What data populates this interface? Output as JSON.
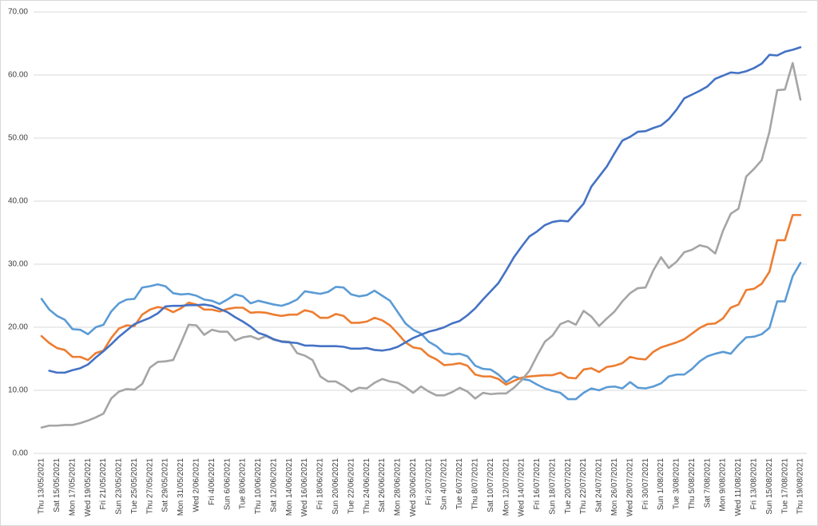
{
  "chart_data": {
    "type": "line",
    "categories": [
      "Thu 13/05/2021",
      null,
      "Sat 15/05/2021",
      null,
      "Mon 17/05/2021",
      null,
      "Wed 19/05/2021",
      null,
      "Fri 21/05/2021",
      null,
      "Sun 23/05/2021",
      null,
      "Tue 25/05/2021",
      null,
      "Thu 27/05/2021",
      null,
      "Sat 29/05/2021",
      null,
      "Mon 31/05/2021",
      null,
      "Wed 2/06/2021",
      null,
      "Fri 4/06/2021",
      null,
      "Sun 6/06/2021",
      null,
      "Tue 8/06/2021",
      null,
      "Thu 10/06/2021",
      null,
      "Sat 12/06/2021",
      null,
      "Mon 14/06/2021",
      null,
      "Wed 16/06/2021",
      null,
      "Fri 18/06/2021",
      null,
      "Sun 20/06/2021",
      null,
      "Tue 22/06/2021",
      null,
      "Thu 24/06/2021",
      null,
      "Sat 26/06/2021",
      null,
      "Mon 28/06/2021",
      null,
      "Wed 30/06/2021",
      null,
      "Fri 2/07/2021",
      null,
      "Sun 4/07/2021",
      null,
      "Tue 6/07/2021",
      null,
      "Thu 8/07/2021",
      null,
      "Sat 10/07/2021",
      null,
      "Mon 12/07/2021",
      null,
      "Wed 14/07/2021",
      null,
      "Fri 16/07/2021",
      null,
      "Sun 18/07/2021",
      null,
      "Tue 20/07/2021",
      null,
      "Thu 22/07/2021",
      null,
      "Sat 24/07/2021",
      null,
      "Mon 26/07/2021",
      null,
      "Wed 28/07/2021",
      null,
      "Fri 30/07/2021",
      null,
      "Sun 1/08/2021",
      null,
      "Tue 3/08/2021",
      null,
      "Thu 5/08/2021",
      null,
      "Sat 7/08/2021",
      null,
      "Mon 9/08/2021",
      null,
      "Wed 11/08/2021",
      null,
      "Fri 13/08/2021",
      null,
      "Sun 15/08/2021",
      null,
      "Tue 17/08/2021",
      null,
      "Thu 19/08/2021"
    ],
    "series": [
      {
        "color": "#5b9bd5",
        "values": [
          24.5,
          22.8,
          21.8,
          21.2,
          19.7,
          19.6,
          18.9,
          20.0,
          20.4,
          22.5,
          23.8,
          24.4,
          24.5,
          26.3,
          26.5,
          26.8,
          26.5,
          25.4,
          25.2,
          25.3,
          25.0,
          24.4,
          24.2,
          23.7,
          24.4,
          25.2,
          24.9,
          23.8,
          24.2,
          23.9,
          23.6,
          23.4,
          23.8,
          24.4,
          25.7,
          25.5,
          25.3,
          25.6,
          26.4,
          26.3,
          25.2,
          24.9,
          25.1,
          25.8,
          25.0,
          24.2,
          22.4,
          20.6,
          19.6,
          19.0,
          17.7,
          17.0,
          15.9,
          15.7,
          15.8,
          15.4,
          13.9,
          13.4,
          13.3,
          12.5,
          11.3,
          12.2,
          11.8,
          11.6,
          10.9,
          10.3,
          9.9,
          9.6,
          8.6,
          8.6,
          9.6,
          10.3,
          10.0,
          10.5,
          10.6,
          10.3,
          11.3,
          10.4,
          10.3,
          10.6,
          11.1,
          12.2,
          12.5,
          12.5,
          13.4,
          14.6,
          15.4,
          15.8,
          16.1,
          15.8,
          17.2,
          18.4,
          18.5,
          18.9,
          19.9,
          24.1,
          24.1,
          28.1,
          30.2
        ]
      },
      {
        "color": "#ed7d31",
        "values": [
          18.6,
          17.5,
          16.7,
          16.4,
          15.3,
          15.3,
          14.8,
          15.9,
          16.3,
          18.3,
          19.8,
          20.3,
          20.2,
          22.0,
          22.8,
          23.2,
          23.0,
          22.4,
          23.0,
          23.9,
          23.6,
          22.8,
          22.8,
          22.5,
          22.9,
          23.1,
          23.1,
          22.3,
          22.4,
          22.3,
          22.0,
          21.8,
          22.0,
          22.0,
          22.7,
          22.4,
          21.5,
          21.5,
          22.1,
          21.8,
          20.7,
          20.7,
          20.9,
          21.5,
          21.1,
          20.3,
          19.0,
          17.6,
          16.8,
          16.6,
          15.5,
          14.9,
          14.0,
          14.1,
          14.3,
          13.9,
          12.5,
          12.2,
          12.2,
          11.8,
          10.9,
          11.5,
          12.0,
          12.2,
          12.3,
          12.4,
          12.4,
          12.8,
          12.0,
          11.9,
          13.3,
          13.5,
          12.9,
          13.7,
          13.9,
          14.3,
          15.3,
          15.0,
          14.9,
          16.1,
          16.8,
          17.2,
          17.6,
          18.1,
          19.0,
          19.9,
          20.5,
          20.6,
          21.4,
          23.1,
          23.6,
          25.9,
          26.1,
          26.9,
          28.8,
          33.8,
          33.8,
          37.8,
          37.8
        ]
      },
      {
        "color": "#a5a5a5",
        "values": [
          4.1,
          4.4,
          4.4,
          4.5,
          4.5,
          4.8,
          5.2,
          5.7,
          6.3,
          8.7,
          9.8,
          10.2,
          10.1,
          11.0,
          13.6,
          14.5,
          14.6,
          14.8,
          17.5,
          20.4,
          20.3,
          18.8,
          19.6,
          19.3,
          19.3,
          17.9,
          18.4,
          18.6,
          18.1,
          18.6,
          18.0,
          17.8,
          17.7,
          15.9,
          15.5,
          14.8,
          12.2,
          11.4,
          11.4,
          10.7,
          9.8,
          10.4,
          10.3,
          11.2,
          11.8,
          11.4,
          11.2,
          10.5,
          9.6,
          10.6,
          9.8,
          9.2,
          9.2,
          9.7,
          10.4,
          9.8,
          8.7,
          9.6,
          9.4,
          9.5,
          9.5,
          10.4,
          11.6,
          13.1,
          15.5,
          17.7,
          18.7,
          20.5,
          21.0,
          20.4,
          22.6,
          21.7,
          20.2,
          21.4,
          22.5,
          24.1,
          25.4,
          26.2,
          26.3,
          29.0,
          31.1,
          29.4,
          30.4,
          31.9,
          32.3,
          33.0,
          32.7,
          31.7,
          35.3,
          38.0,
          38.8,
          43.9,
          45.1,
          46.5,
          51.0,
          57.6,
          57.7,
          61.9,
          56.1
        ]
      },
      {
        "color": "#4472c4",
        "values": [
          null,
          13.1,
          12.8,
          12.8,
          13.2,
          13.5,
          14.1,
          15.2,
          16.2,
          17.3,
          18.5,
          19.5,
          20.5,
          21.0,
          21.5,
          22.2,
          23.3,
          23.4,
          23.4,
          23.5,
          23.5,
          23.6,
          23.4,
          22.9,
          22.4,
          21.6,
          20.9,
          20.1,
          19.1,
          18.7,
          18.1,
          17.7,
          17.6,
          17.5,
          17.1,
          17.1,
          17.0,
          17.0,
          17.0,
          16.9,
          16.6,
          16.6,
          16.7,
          16.4,
          16.3,
          16.5,
          16.9,
          17.6,
          18.3,
          18.8,
          19.3,
          19.6,
          20.0,
          20.6,
          21.0,
          21.9,
          23.0,
          24.4,
          25.7,
          27.0,
          29.0,
          31.1,
          32.8,
          34.4,
          35.2,
          36.2,
          36.7,
          36.9,
          36.8,
          38.2,
          39.6,
          42.3,
          43.9,
          45.5,
          47.6,
          49.6,
          50.2,
          51.0,
          51.1,
          51.6,
          52.0,
          53.0,
          54.5,
          56.3,
          56.9,
          57.5,
          58.2,
          59.4,
          59.9,
          60.4,
          60.3,
          60.6,
          61.1,
          61.8,
          63.2,
          63.1,
          63.7,
          64.0,
          64.4
        ]
      }
    ],
    "ylim": [
      0,
      70
    ],
    "yticks": [
      {
        "value": 0,
        "label": "0.00"
      },
      {
        "value": 10,
        "label": "10.00"
      },
      {
        "value": 20,
        "label": "20.00"
      },
      {
        "value": 30,
        "label": "30.00"
      },
      {
        "value": 40,
        "label": "40.00"
      },
      {
        "value": 50,
        "label": "50.00"
      },
      {
        "value": 60,
        "label": "60.00"
      },
      {
        "value": 70,
        "label": "70.00"
      }
    ],
    "grid": true
  }
}
